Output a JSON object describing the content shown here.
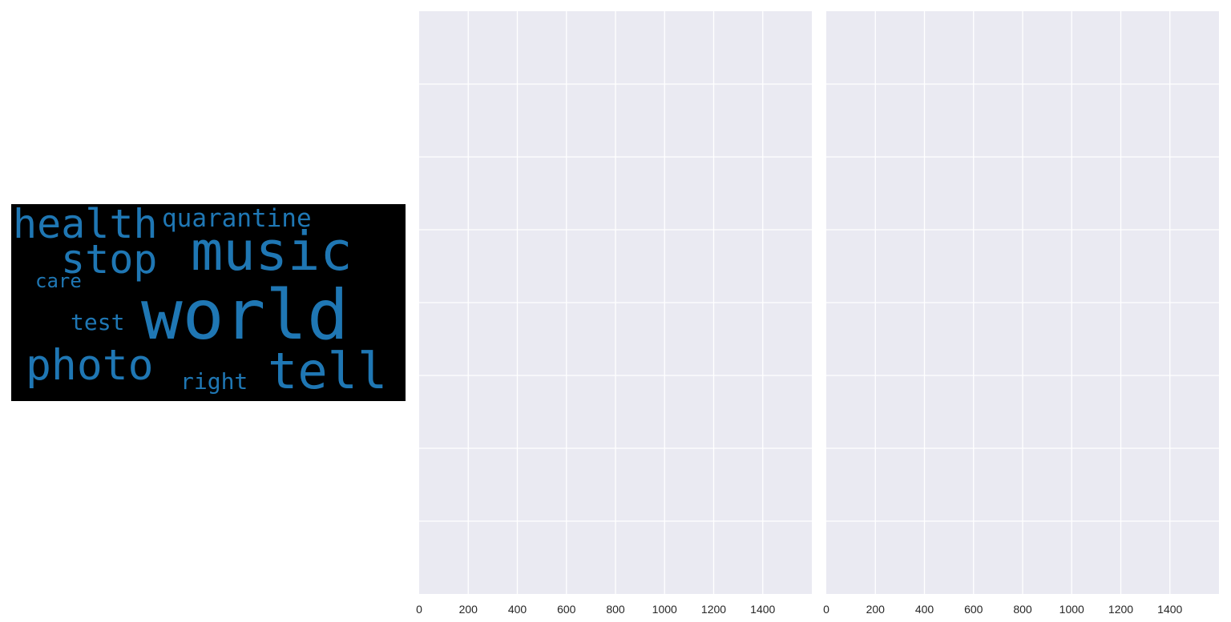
{
  "chart_data": [
    {
      "type": "wordcloud",
      "background": "#000000",
      "word_color": "#1f77b4",
      "words": [
        {
          "text": "world",
          "weight": 1.0
        },
        {
          "text": "music",
          "weight": 0.78
        },
        {
          "text": "tell",
          "weight": 0.72
        },
        {
          "text": "photo",
          "weight": 0.62
        },
        {
          "text": "health",
          "weight": 0.58
        },
        {
          "text": "stop",
          "weight": 0.58
        },
        {
          "text": "quarantine",
          "weight": 0.36
        },
        {
          "text": "test",
          "weight": 0.33
        },
        {
          "text": "right",
          "weight": 0.32
        },
        {
          "text": "care",
          "weight": 0.28
        }
      ]
    },
    {
      "type": "bar",
      "title": "",
      "xlabel": "",
      "ylabel": "",
      "xlim": [
        0,
        1600
      ],
      "xticks": [
        "0",
        "200",
        "400",
        "600",
        "800",
        "1000",
        "1200",
        "1400"
      ],
      "ylim": [
        0,
        8
      ],
      "gridlines_y": 8,
      "grid": true,
      "background": "#eaeaf2",
      "series": []
    },
    {
      "type": "bar",
      "title": "",
      "xlabel": "",
      "ylabel": "",
      "xlim": [
        0,
        1600
      ],
      "xticks": [
        "0",
        "200",
        "400",
        "600",
        "800",
        "1000",
        "1200",
        "1400"
      ],
      "ylim": [
        0,
        8
      ],
      "gridlines_y": 8,
      "grid": true,
      "background": "#eaeaf2",
      "series": []
    }
  ]
}
